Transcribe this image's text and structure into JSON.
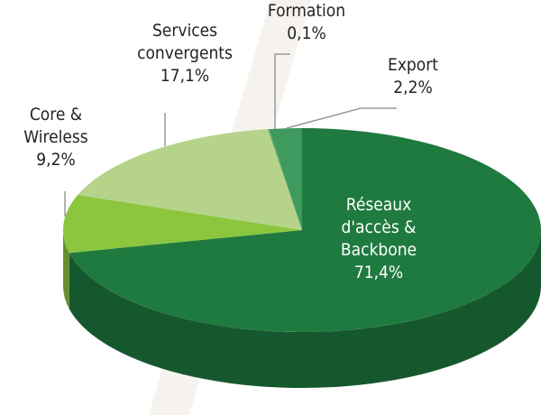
{
  "chart_data": {
    "type": "pie",
    "categories": [
      "Réseaux d'accès & Backbone",
      "Core & Wireless",
      "Services convergents",
      "Formation",
      "Export"
    ],
    "values": [
      71.4,
      9.2,
      17.1,
      0.1,
      2.2
    ],
    "value_labels": [
      "71,4%",
      "9,2%",
      "17,1%",
      "0,1%",
      "2,2%"
    ],
    "colors": [
      "#1f7a3f",
      "#8cc63f",
      "#b5d48a",
      "#6aa86a",
      "#3e9a5f"
    ]
  }
}
